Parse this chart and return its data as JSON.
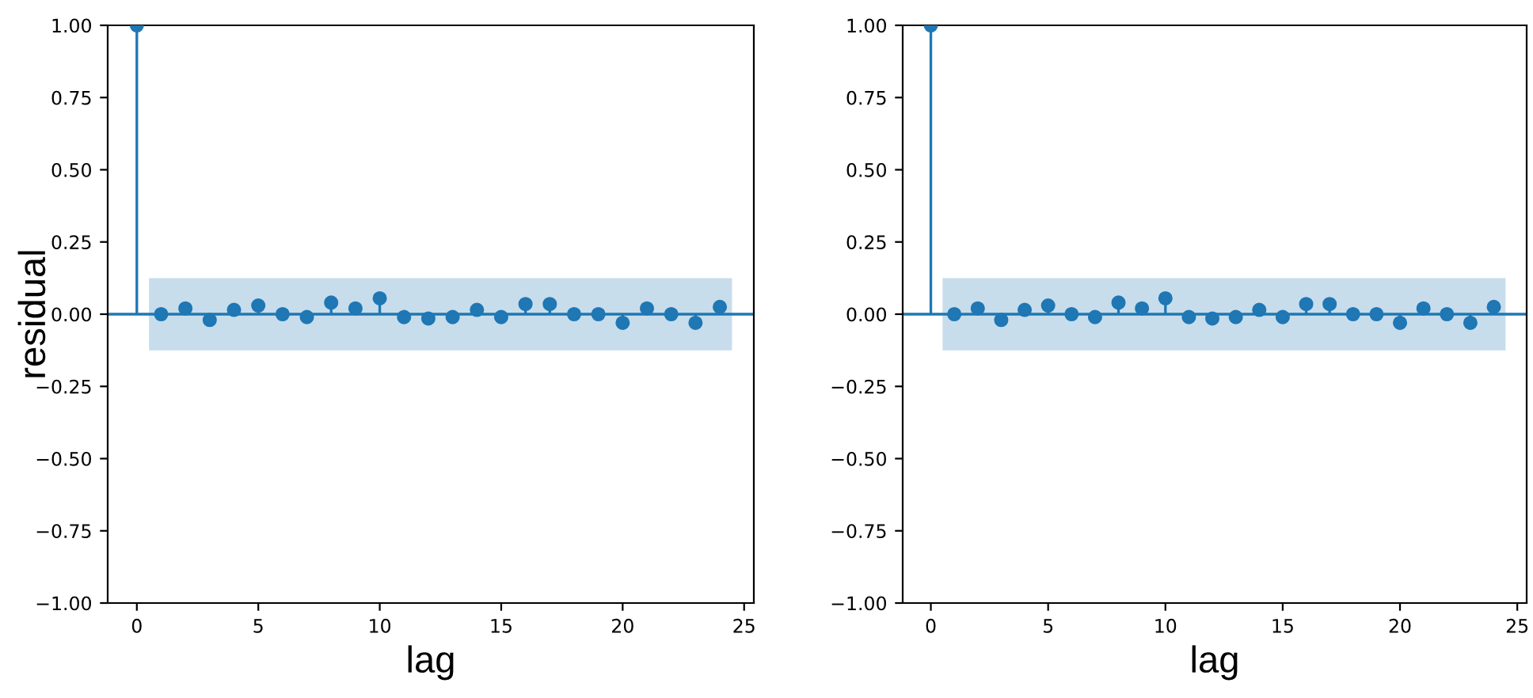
{
  "chart_data": [
    {
      "type": "lollipop",
      "xlabel": "lag",
      "ylabel": "residual",
      "x": [
        0,
        1,
        2,
        3,
        4,
        5,
        6,
        7,
        8,
        9,
        10,
        11,
        12,
        13,
        14,
        15,
        16,
        17,
        18,
        19,
        20,
        21,
        22,
        23,
        24
      ],
      "series": [
        {
          "color": "#1f77b4",
          "values": [
            1.0,
            0.0,
            0.02,
            -0.02,
            0.015,
            0.03,
            0.0,
            -0.01,
            0.04,
            0.02,
            0.055,
            -0.01,
            -0.015,
            -0.01,
            0.015,
            -0.01,
            0.035,
            0.035,
            0.0,
            0.0,
            -0.03,
            0.02,
            0.0,
            -0.03,
            0.025
          ]
        }
      ],
      "bands": [
        {
          "axis": "y",
          "from": -0.125,
          "to": 0.125,
          "color": "#1f77b4"
        }
      ],
      "ref_lines": [
        {
          "axis": "y",
          "value": 0,
          "color": "#1f77b4"
        }
      ],
      "xlim": [
        -1.2,
        25.4
      ],
      "ylim": [
        -1.0,
        1.0
      ],
      "xticks": [
        0,
        5,
        10,
        15,
        20,
        25
      ],
      "yticks": [
        {
          "value": 1.0,
          "label": "1.00"
        },
        {
          "value": 0.75,
          "label": "0.75"
        },
        {
          "value": 0.5,
          "label": "0.50"
        },
        {
          "value": 0.25,
          "label": "0.25"
        },
        {
          "value": 0.0,
          "label": "0.00"
        },
        {
          "value": -0.25,
          "label": "−0.25"
        },
        {
          "value": -0.5,
          "label": "−0.50"
        },
        {
          "value": -0.75,
          "label": "−0.75"
        },
        {
          "value": -1.0,
          "label": "−1.00"
        }
      ],
      "marker": "circle",
      "grid": false,
      "legend": false
    },
    {
      "type": "lollipop",
      "xlabel": "lag",
      "x": [
        0,
        1,
        2,
        3,
        4,
        5,
        6,
        7,
        8,
        9,
        10,
        11,
        12,
        13,
        14,
        15,
        16,
        17,
        18,
        19,
        20,
        21,
        22,
        23,
        24
      ],
      "series": [
        {
          "color": "#1f77b4",
          "values": [
            1.0,
            0.0,
            0.02,
            -0.02,
            0.015,
            0.03,
            0.0,
            -0.01,
            0.04,
            0.02,
            0.055,
            -0.01,
            -0.015,
            -0.01,
            0.015,
            -0.01,
            0.035,
            0.035,
            0.0,
            0.0,
            -0.03,
            0.02,
            0.0,
            -0.03,
            0.025
          ]
        }
      ],
      "bands": [
        {
          "axis": "y",
          "from": -0.125,
          "to": 0.125,
          "color": "#1f77b4"
        }
      ],
      "ref_lines": [
        {
          "axis": "y",
          "value": 0,
          "color": "#1f77b4"
        }
      ],
      "xlim": [
        -1.2,
        25.4
      ],
      "ylim": [
        -1.0,
        1.0
      ],
      "xticks": [
        0,
        5,
        10,
        15,
        20,
        25
      ],
      "yticks": [
        {
          "value": 1.0,
          "label": "1.00"
        },
        {
          "value": 0.75,
          "label": "0.75"
        },
        {
          "value": 0.5,
          "label": "0.50"
        },
        {
          "value": 0.25,
          "label": "0.25"
        },
        {
          "value": 0.0,
          "label": "0.00"
        },
        {
          "value": -0.25,
          "label": "−0.25"
        },
        {
          "value": -0.5,
          "label": "−0.50"
        },
        {
          "value": -0.75,
          "label": "−0.75"
        },
        {
          "value": -1.0,
          "label": "−1.00"
        }
      ],
      "marker": "circle",
      "grid": false,
      "legend": false
    }
  ]
}
